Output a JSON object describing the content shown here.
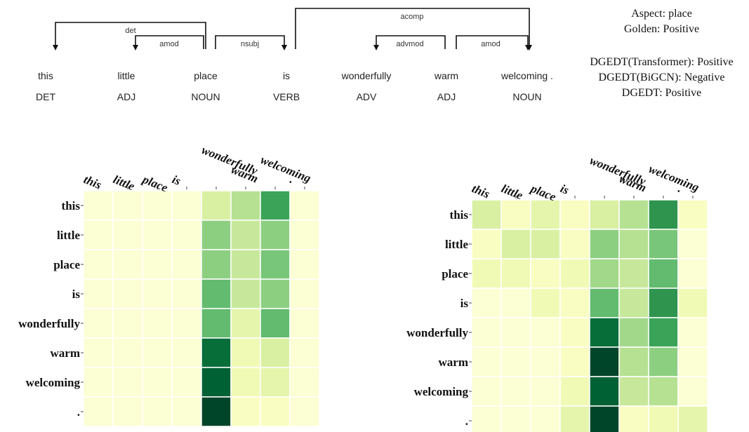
{
  "parse": {
    "words": [
      {
        "text": "this",
        "pos": "DET"
      },
      {
        "text": "little",
        "pos": "ADJ"
      },
      {
        "text": "place",
        "pos": "NOUN"
      },
      {
        "text": "is",
        "pos": "VERB"
      },
      {
        "text": "wonderfully",
        "pos": "ADV"
      },
      {
        "text": "warm",
        "pos": "ADJ"
      },
      {
        "text": "welcoming .",
        "pos": "NOUN"
      }
    ],
    "arcs": [
      {
        "label": "det",
        "head": 2,
        "dep": 0
      },
      {
        "label": "amod",
        "head": 2,
        "dep": 1
      },
      {
        "label": "nsubj",
        "head": 2,
        "dep": 3
      },
      {
        "label": "acomp",
        "head": 3,
        "dep": 6
      },
      {
        "label": "advmod",
        "head": 5,
        "dep": 4
      },
      {
        "label": "amod",
        "head": 5,
        "dep": 6
      }
    ]
  },
  "info": {
    "aspect": "Aspect: place",
    "golden": "Golden: Positive",
    "pred_transformer": "DGEDT(Transformer): Positive",
    "pred_bigcn": "DGEDT(BiGCN): Negative",
    "pred_dgedt": "DGEDT: Positive"
  },
  "colors": {
    "ramp": [
      "#ffffe5",
      "#f7fcb9",
      "#d9f0a3",
      "#addd8e",
      "#78c679",
      "#41ab5d",
      "#238443",
      "#006837",
      "#004529"
    ]
  },
  "chart_data": [
    {
      "type": "heatmap",
      "x_labels": [
        "this",
        "little",
        "place",
        "is",
        "wonderfully",
        "warm",
        "welcoming",
        "."
      ],
      "y_labels": [
        "this",
        "little",
        "place",
        "is",
        "wonderfully",
        "warm",
        "welcoming",
        "."
      ],
      "values": [
        [
          0.05,
          0.05,
          0.05,
          0.05,
          0.25,
          0.35,
          0.65,
          0.05
        ],
        [
          0.05,
          0.05,
          0.05,
          0.05,
          0.45,
          0.3,
          0.45,
          0.05
        ],
        [
          0.05,
          0.05,
          0.05,
          0.05,
          0.45,
          0.3,
          0.5,
          0.05
        ],
        [
          0.05,
          0.05,
          0.05,
          0.05,
          0.55,
          0.3,
          0.45,
          0.05
        ],
        [
          0.05,
          0.05,
          0.05,
          0.05,
          0.55,
          0.2,
          0.55,
          0.05
        ],
        [
          0.05,
          0.05,
          0.05,
          0.05,
          0.85,
          0.15,
          0.25,
          0.05
        ],
        [
          0.05,
          0.05,
          0.05,
          0.05,
          0.9,
          0.15,
          0.2,
          0.05
        ],
        [
          0.05,
          0.05,
          0.05,
          0.05,
          1.0,
          0.1,
          0.1,
          0.05
        ]
      ]
    },
    {
      "type": "heatmap",
      "x_labels": [
        "this",
        "little",
        "place",
        "is",
        "wonderfully",
        "warm",
        "welcoming",
        "."
      ],
      "y_labels": [
        "this",
        "little",
        "place",
        "is",
        "wonderfully",
        "warm",
        "welcoming",
        "."
      ],
      "values": [
        [
          0.25,
          0.1,
          0.2,
          0.1,
          0.25,
          0.35,
          0.7,
          0.1
        ],
        [
          0.1,
          0.25,
          0.25,
          0.1,
          0.45,
          0.35,
          0.5,
          0.05
        ],
        [
          0.15,
          0.15,
          0.1,
          0.15,
          0.4,
          0.3,
          0.55,
          0.05
        ],
        [
          0.05,
          0.05,
          0.15,
          0.1,
          0.55,
          0.3,
          0.7,
          0.15
        ],
        [
          0.05,
          0.05,
          0.05,
          0.1,
          0.85,
          0.4,
          0.65,
          0.05
        ],
        [
          0.05,
          0.05,
          0.05,
          0.1,
          1.0,
          0.35,
          0.45,
          0.05
        ],
        [
          0.05,
          0.05,
          0.05,
          0.15,
          0.9,
          0.3,
          0.35,
          0.05
        ],
        [
          0.05,
          0.05,
          0.05,
          0.2,
          1.0,
          0.1,
          0.15,
          0.2
        ]
      ]
    }
  ]
}
